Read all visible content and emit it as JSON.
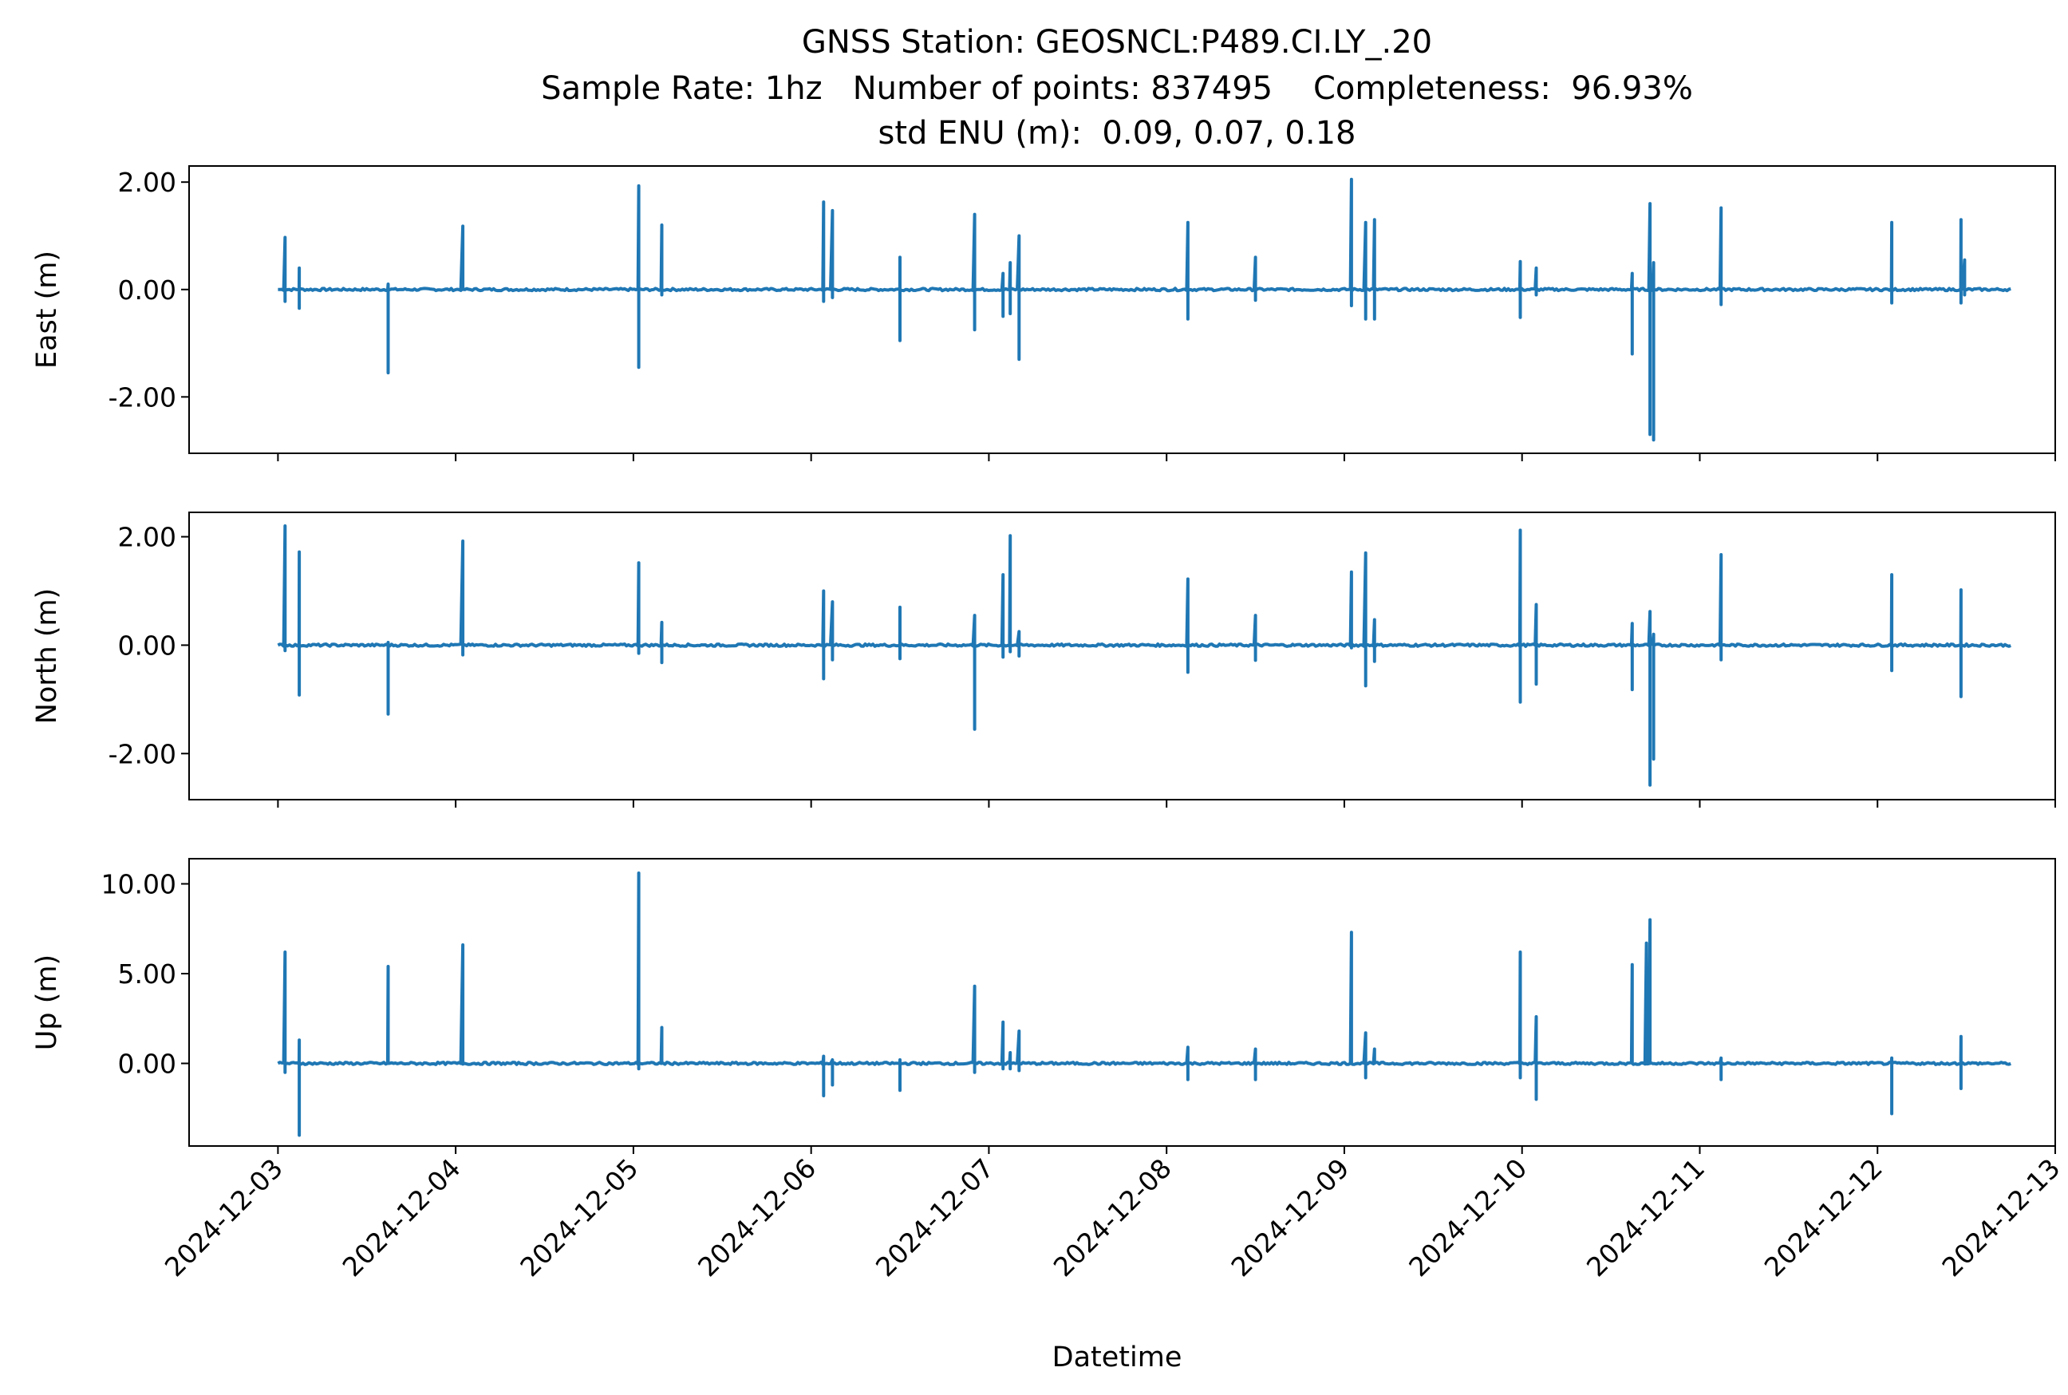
{
  "chart_data": {
    "type": "line",
    "title": [
      "GNSS Station: GEOSNCL:P489.CI.LY_.20",
      "Sample Rate: 1hz   Number of points: 837495    Completeness:  96.93%",
      "std ENU (m):  0.09, 0.07, 0.18"
    ],
    "xlabel": "Datetime",
    "x_ticks": [
      "2024-12-03",
      "2024-12-04",
      "2024-12-05",
      "2024-12-06",
      "2024-12-07",
      "2024-12-08",
      "2024-12-09",
      "2024-12-10",
      "2024-12-11",
      "2024-12-12",
      "2024-12-13"
    ],
    "x_range_days": [
      -0.5,
      10.0
    ],
    "series_span_days": [
      0.0,
      9.75
    ],
    "line_color": "#1f77b4",
    "panels": [
      {
        "name": "East",
        "ylabel": "East (m)",
        "ylim": [
          -3.05,
          2.3
        ],
        "y_ticks": [
          2.0,
          0.0,
          -2.0
        ],
        "y_tick_labels": [
          "2.00",
          "0.00",
          "-2.00"
        ],
        "spikes": [
          [
            0.04,
            0.97,
            -0.22
          ],
          [
            0.12,
            0.4,
            -0.35
          ],
          [
            0.62,
            0.1,
            -1.55
          ],
          [
            1.04,
            1.18,
            0.0
          ],
          [
            2.03,
            1.93,
            -1.45
          ],
          [
            2.16,
            1.2,
            -0.1
          ],
          [
            3.07,
            1.63,
            -0.22
          ],
          [
            3.12,
            1.47,
            -0.15
          ],
          [
            3.5,
            0.6,
            -0.95
          ],
          [
            3.92,
            1.4,
            -0.75
          ],
          [
            4.08,
            0.3,
            -0.5
          ],
          [
            4.12,
            0.5,
            -0.45
          ],
          [
            4.17,
            1.0,
            -1.3
          ],
          [
            5.12,
            1.25,
            -0.55
          ],
          [
            5.5,
            0.6,
            -0.2
          ],
          [
            6.04,
            2.05,
            -0.3
          ],
          [
            6.12,
            1.25,
            -0.55
          ],
          [
            6.17,
            1.3,
            -0.55
          ],
          [
            6.99,
            0.52,
            -0.52
          ],
          [
            7.08,
            0.4,
            -0.1
          ],
          [
            7.62,
            0.3,
            -1.2
          ],
          [
            7.72,
            1.6,
            -2.7
          ],
          [
            7.74,
            0.5,
            -2.8
          ],
          [
            8.12,
            1.52,
            -0.28
          ],
          [
            9.08,
            1.25,
            -0.25
          ],
          [
            9.47,
            1.3,
            -0.25
          ],
          [
            9.49,
            0.55,
            -0.1
          ]
        ]
      },
      {
        "name": "North",
        "ylabel": "North (m)",
        "ylim": [
          -2.85,
          2.45
        ],
        "y_ticks": [
          2.0,
          0.0,
          -2.0
        ],
        "y_tick_labels": [
          "2.00",
          "0.00",
          "-2.00"
        ],
        "spikes": [
          [
            0.04,
            2.2,
            -0.1
          ],
          [
            0.12,
            1.72,
            -0.92
          ],
          [
            0.62,
            0.05,
            -1.27
          ],
          [
            1.04,
            1.92,
            -0.18
          ],
          [
            2.03,
            1.52,
            -0.15
          ],
          [
            2.16,
            0.42,
            -0.32
          ],
          [
            3.07,
            1.0,
            -0.62
          ],
          [
            3.12,
            0.8,
            -0.27
          ],
          [
            3.5,
            0.7,
            -0.25
          ],
          [
            3.92,
            0.55,
            -1.55
          ],
          [
            4.08,
            1.3,
            -0.22
          ],
          [
            4.12,
            2.02,
            -0.12
          ],
          [
            4.17,
            0.25,
            -0.2
          ],
          [
            5.12,
            1.22,
            -0.5
          ],
          [
            5.5,
            0.55,
            -0.28
          ],
          [
            6.04,
            1.35,
            -0.05
          ],
          [
            6.12,
            1.7,
            -0.75
          ],
          [
            6.17,
            0.47,
            -0.3
          ],
          [
            6.99,
            2.12,
            -1.05
          ],
          [
            7.08,
            0.75,
            -0.72
          ],
          [
            7.62,
            0.4,
            -0.82
          ],
          [
            7.72,
            0.62,
            -2.58
          ],
          [
            7.74,
            0.2,
            -2.1
          ],
          [
            8.12,
            1.67,
            -0.27
          ],
          [
            9.08,
            1.3,
            -0.47
          ],
          [
            9.47,
            1.02,
            -0.95
          ]
        ]
      },
      {
        "name": "Up",
        "ylabel": "Up (m)",
        "ylim": [
          -4.6,
          11.4
        ],
        "y_ticks": [
          10.0,
          5.0,
          0.0
        ],
        "y_tick_labels": [
          "10.00",
          "5.00",
          "0.00"
        ],
        "spikes": [
          [
            0.04,
            6.2,
            -0.5
          ],
          [
            0.12,
            1.3,
            -4.0
          ],
          [
            0.62,
            5.4,
            0.0
          ],
          [
            1.04,
            6.6,
            0.0
          ],
          [
            2.03,
            10.6,
            -0.3
          ],
          [
            2.16,
            2.0,
            0.0
          ],
          [
            3.07,
            0.4,
            -1.8
          ],
          [
            3.12,
            0.2,
            -1.2
          ],
          [
            3.5,
            0.2,
            -1.5
          ],
          [
            3.92,
            4.3,
            -0.5
          ],
          [
            4.08,
            2.3,
            -0.3
          ],
          [
            4.12,
            0.6,
            -0.3
          ],
          [
            4.17,
            1.8,
            -0.4
          ],
          [
            5.12,
            0.9,
            -0.9
          ],
          [
            5.5,
            0.8,
            -0.9
          ],
          [
            6.04,
            7.3,
            0.0
          ],
          [
            6.12,
            1.7,
            -0.8
          ],
          [
            6.17,
            0.8,
            0.0
          ],
          [
            6.99,
            6.2,
            -0.8
          ],
          [
            7.08,
            2.6,
            -2.0
          ],
          [
            7.62,
            5.5,
            0.0
          ],
          [
            7.7,
            6.7,
            0.0
          ],
          [
            7.72,
            8.0,
            0.0
          ],
          [
            8.12,
            0.3,
            -0.9
          ],
          [
            9.08,
            0.3,
            -2.8
          ],
          [
            9.47,
            1.5,
            -1.4
          ]
        ]
      }
    ]
  }
}
